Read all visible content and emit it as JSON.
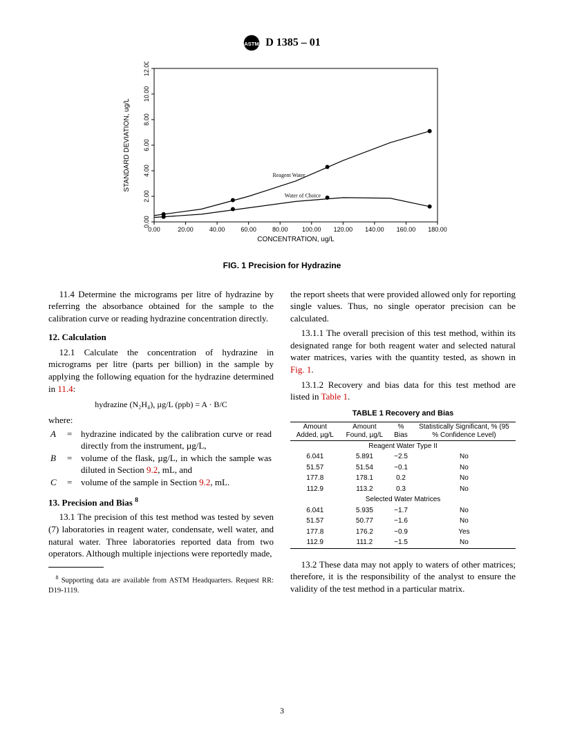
{
  "header": {
    "designation": "D 1385 – 01"
  },
  "figure": {
    "caption": "FIG. 1 Precision for Hydrazine",
    "xlabel": "CONCENTRATION, ug/L",
    "ylabel": "STANDARD DEVIATION, ug/L",
    "xlim": [
      0,
      180
    ],
    "ylim": [
      0,
      12
    ],
    "xtick_step": 20,
    "ytick_step": 2,
    "xticks": [
      "0.00",
      "20.00",
      "40.00",
      "60.00",
      "80.00",
      "100.00",
      "120.00",
      "140.00",
      "160.00",
      "180.00"
    ],
    "yticks": [
      "0.00",
      "2.00",
      "4.00",
      "6.00",
      "8.00",
      "10.00",
      "12.00"
    ],
    "series": [
      {
        "label": "Reagent Water",
        "points": [
          [
            6,
            0.6
          ],
          [
            50,
            1.7
          ],
          [
            110,
            4.3
          ],
          [
            175,
            7.1
          ]
        ],
        "smooth": [
          [
            0,
            0.5
          ],
          [
            30,
            1.0
          ],
          [
            60,
            2.0
          ],
          [
            90,
            3.2
          ],
          [
            120,
            4.8
          ],
          [
            150,
            6.2
          ],
          [
            175,
            7.1
          ]
        ]
      },
      {
        "label": "Water of Choice",
        "points": [
          [
            6,
            0.4
          ],
          [
            50,
            1.0
          ],
          [
            110,
            1.9
          ],
          [
            175,
            1.2
          ]
        ],
        "smooth": [
          [
            0,
            0.35
          ],
          [
            30,
            0.6
          ],
          [
            60,
            1.1
          ],
          [
            90,
            1.6
          ],
          [
            120,
            1.9
          ],
          [
            150,
            1.85
          ],
          [
            175,
            1.2
          ]
        ]
      }
    ],
    "axis_fontsize": 9,
    "label_fontsize": 10,
    "line_color": "#000000",
    "line_width": 1.2,
    "marker": "circle",
    "marker_size": 4,
    "background_color": "#ffffff"
  },
  "body": {
    "p11_4": "11.4 Determine the micrograms per litre of hydrazine by referring the absorbance obtained for the sample to the calibration curve or reading hydrazine concentration directly.",
    "s12_title": "12.  Calculation",
    "p12_1_a": "12.1 Calculate the concentration of hydrazine in micrograms per litre (parts per billion) in the sample by applying the following equation for the hydrazine determined in ",
    "p12_1_ref": "11.4",
    "p12_1_b": ":",
    "equation": "hydrazine (N₂H₄), µg/L (ppb) = A · B/C",
    "where": "where:",
    "A_sym": "A",
    "A_def_a": "hydrazine indicated by the calibration curve or read directly from the instrument, µg/L,",
    "B_sym": "B",
    "B_def_a": "volume of the flask, µg/L, in which the sample was diluted in Section ",
    "B_ref": "9.2",
    "B_def_b": ", mL, and",
    "C_sym": "C",
    "C_def_a": "volume of the sample in Section ",
    "C_ref": "9.2",
    "C_def_b": ", mL.",
    "s13_title": "13.  Precision and Bias ",
    "s13_sup": "8",
    "p13_1": "13.1 The precision of this test method was tested by seven (7) laboratories in reagent water, condensate, well water, and natural water. Three laboratories reported data from two operators. Although multiple injections were reportedly made,",
    "p_col2_cont": "the report sheets that were provided allowed only for reporting single values. Thus, no single operator precision can be calculated.",
    "p13_1_1_a": "13.1.1 The overall precision of this test method, within its designated range for both reagent water and selected natural water matrices, varies with the quantity tested, as shown in ",
    "p13_1_1_ref": "Fig. 1",
    "p13_1_1_b": ".",
    "p13_1_2_a": "13.1.2 Recovery and bias data for this test method are listed in ",
    "p13_1_2_ref": "Table 1",
    "p13_1_2_b": ".",
    "p13_2": "13.2 These data may not apply to waters of other matrices; therefore, it is the responsibility of the analyst to ensure the validity of the test method in a particular matrix."
  },
  "table": {
    "title": "TABLE 1  Recovery and Bias",
    "headers": {
      "c1": "Amount Added, µg/L",
      "c2": "Amount Found, µg/L",
      "c3": "% Bias",
      "c4": "Statistically Significant, % (95 % Confidence Level)"
    },
    "sub1": "Reagent Water Type II",
    "sub2": "Selected Water Matrices",
    "rows1": [
      {
        "a": "6.041",
        "f": "5.891",
        "b": "−2.5",
        "s": "No"
      },
      {
        "a": "51.57",
        "f": "51.54",
        "b": "−0.1",
        "s": "No"
      },
      {
        "a": "177.8",
        "f": "178.1",
        "b": "0.2",
        "s": "No"
      },
      {
        "a": "112.9",
        "f": "113.2",
        "b": "0.3",
        "s": "No"
      }
    ],
    "rows2": [
      {
        "a": "6.041",
        "f": "5.935",
        "b": "−1.7",
        "s": "No"
      },
      {
        "a": "51.57",
        "f": "50.77",
        "b": "−1.6",
        "s": "No"
      },
      {
        "a": "177.8",
        "f": "176.2",
        "b": "−0.9",
        "s": "Yes"
      },
      {
        "a": "112.9",
        "f": "111.2",
        "b": "−1.5",
        "s": "No"
      }
    ]
  },
  "footnote": {
    "marker": "8",
    "text": " Supporting data are available from ASTM Headquarters. Request RR: D19-1119."
  },
  "page_number": "3"
}
